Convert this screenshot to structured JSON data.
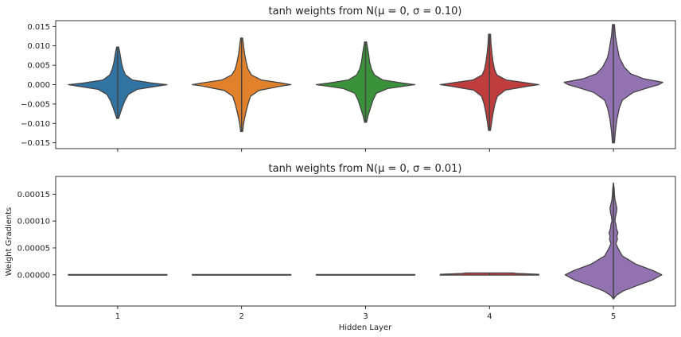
{
  "chart_data": [
    {
      "type": "violin",
      "title": "tanh weights from N(μ = 0, σ = 0.10)",
      "xlabel": "",
      "ylabel": "",
      "categories": [
        "1",
        "2",
        "3",
        "4",
        "5"
      ],
      "ylim": [
        -0.0165,
        0.0165
      ],
      "yticks": [
        -0.015,
        -0.01,
        -0.005,
        0.0,
        0.005,
        0.01,
        0.015
      ],
      "ytick_labels": [
        "−0.015",
        "−0.010",
        "−0.005",
        "0.000",
        "0.005",
        "0.010",
        "0.015"
      ],
      "show_xtick_labels": false,
      "violins": [
        {
          "category": "1",
          "color": "#3274a1",
          "min": -0.0087,
          "max": 0.0097,
          "density": [
            [
              -0.0087,
              0.02
            ],
            [
              -0.0075,
              0.05
            ],
            [
              -0.006,
              0.09
            ],
            [
              -0.004,
              0.15
            ],
            [
              -0.0025,
              0.22
            ],
            [
              -0.0012,
              0.4
            ],
            [
              -0.0004,
              0.8
            ],
            [
              0.0,
              1.0
            ],
            [
              0.0004,
              0.7
            ],
            [
              0.0012,
              0.3
            ],
            [
              0.0025,
              0.16
            ],
            [
              0.004,
              0.11
            ],
            [
              0.0055,
              0.08
            ],
            [
              0.007,
              0.06
            ],
            [
              0.0085,
              0.04
            ],
            [
              0.0097,
              0.02
            ]
          ]
        },
        {
          "category": "2",
          "color": "#e1812c",
          "min": -0.0121,
          "max": 0.012,
          "density": [
            [
              -0.0121,
              0.02
            ],
            [
              -0.01,
              0.04
            ],
            [
              -0.0075,
              0.08
            ],
            [
              -0.005,
              0.13
            ],
            [
              -0.003,
              0.18
            ],
            [
              -0.0015,
              0.35
            ],
            [
              -0.0004,
              0.78
            ],
            [
              0.0,
              1.0
            ],
            [
              0.0004,
              0.82
            ],
            [
              0.0012,
              0.4
            ],
            [
              0.0025,
              0.2
            ],
            [
              0.004,
              0.13
            ],
            [
              0.006,
              0.09
            ],
            [
              0.008,
              0.06
            ],
            [
              0.01,
              0.04
            ],
            [
              0.012,
              0.02
            ]
          ]
        },
        {
          "category": "3",
          "color": "#3a923a",
          "min": -0.0097,
          "max": 0.011,
          "density": [
            [
              -0.0097,
              0.02
            ],
            [
              -0.008,
              0.05
            ],
            [
              -0.006,
              0.1
            ],
            [
              -0.004,
              0.15
            ],
            [
              -0.0022,
              0.22
            ],
            [
              -0.001,
              0.45
            ],
            [
              -0.0003,
              0.82
            ],
            [
              0.0,
              1.0
            ],
            [
              0.0004,
              0.75
            ],
            [
              0.0012,
              0.35
            ],
            [
              0.0025,
              0.18
            ],
            [
              0.004,
              0.12
            ],
            [
              0.006,
              0.08
            ],
            [
              0.008,
              0.06
            ],
            [
              0.0095,
              0.04
            ],
            [
              0.011,
              0.02
            ]
          ]
        },
        {
          "category": "4",
          "color": "#c03d3e",
          "min": -0.0118,
          "max": 0.013,
          "density": [
            [
              -0.0118,
              0.02
            ],
            [
              -0.01,
              0.04
            ],
            [
              -0.0075,
              0.07
            ],
            [
              -0.005,
              0.11
            ],
            [
              -0.003,
              0.16
            ],
            [
              -0.0014,
              0.32
            ],
            [
              -0.0004,
              0.78
            ],
            [
              0.0,
              1.0
            ],
            [
              0.0004,
              0.78
            ],
            [
              0.0012,
              0.34
            ],
            [
              0.0025,
              0.15
            ],
            [
              0.004,
              0.1
            ],
            [
              0.006,
              0.07
            ],
            [
              0.008,
              0.05
            ],
            [
              0.0105,
              0.03
            ],
            [
              0.013,
              0.02
            ]
          ]
        },
        {
          "category": "5",
          "color": "#9372b2",
          "min": -0.015,
          "max": 0.0155,
          "density": [
            [
              -0.015,
              0.02
            ],
            [
              -0.012,
              0.04
            ],
            [
              -0.009,
              0.07
            ],
            [
              -0.006,
              0.12
            ],
            [
              -0.004,
              0.18
            ],
            [
              -0.002,
              0.4
            ],
            [
              -0.0008,
              0.7
            ],
            [
              0.0,
              0.92
            ],
            [
              0.0006,
              1.0
            ],
            [
              0.0015,
              0.62
            ],
            [
              0.0028,
              0.35
            ],
            [
              0.0045,
              0.22
            ],
            [
              0.007,
              0.12
            ],
            [
              0.0095,
              0.08
            ],
            [
              0.0125,
              0.04
            ],
            [
              0.0155,
              0.02
            ]
          ]
        }
      ]
    },
    {
      "type": "violin",
      "title": "tanh weights from N(μ = 0, σ = 0.01)",
      "xlabel": "Hidden Layer",
      "ylabel": "Weight Gradients",
      "categories": [
        "1",
        "2",
        "3",
        "4",
        "5"
      ],
      "ylim": [
        -5.8e-05,
        0.000183
      ],
      "yticks": [
        0.0,
        5e-05,
        0.0001,
        0.00015
      ],
      "ytick_labels": [
        "0.00000",
        "0.00005",
        "0.00010",
        "0.00015"
      ],
      "show_xtick_labels": true,
      "violins": [
        {
          "category": "1",
          "color": "#3274a1",
          "min": 0.0,
          "max": 0.0,
          "density": [
            [
              -5e-07,
              1.0
            ],
            [
              5e-07,
              1.0
            ]
          ]
        },
        {
          "category": "2",
          "color": "#e1812c",
          "min": 0.0,
          "max": 0.0,
          "density": [
            [
              -5e-07,
              1.0
            ],
            [
              5e-07,
              1.0
            ]
          ]
        },
        {
          "category": "3",
          "color": "#3a923a",
          "min": 0.0,
          "max": 0.0,
          "density": [
            [
              -5e-07,
              1.0
            ],
            [
              5e-07,
              1.0
            ]
          ]
        },
        {
          "category": "4",
          "color": "#c03d3e",
          "min": -5e-07,
          "max": 3.5e-06,
          "density": [
            [
              -5e-07,
              1.0
            ],
            [
              1e-06,
              1.0
            ],
            [
              2.5e-06,
              0.55
            ],
            [
              3.5e-06,
              0.48
            ]
          ]
        },
        {
          "category": "5",
          "color": "#9372b2",
          "min": -4.5e-05,
          "max": 0.000171,
          "density": [
            [
              -4.5e-05,
              0.0
            ],
            [
              -3.8e-05,
              0.06
            ],
            [
              -3e-05,
              0.2
            ],
            [
              -2e-05,
              0.48
            ],
            [
              -1e-05,
              0.78
            ],
            [
              0.0,
              0.98
            ],
            [
              8e-06,
              0.8
            ],
            [
              2e-05,
              0.45
            ],
            [
              3.5e-05,
              0.18
            ],
            [
              4.8e-05,
              0.1
            ],
            [
              5.8e-05,
              0.05
            ],
            [
              6.6e-05,
              0.08
            ],
            [
              7.2e-05,
              0.07
            ],
            [
              7.8e-05,
              0.09
            ],
            [
              8.6e-05,
              0.06
            ],
            [
              9.4e-05,
              0.05
            ],
            [
              0.0001,
              0.03
            ],
            [
              0.000108,
              0.04
            ],
            [
              0.000116,
              0.06
            ],
            [
              0.000124,
              0.07
            ],
            [
              0.000132,
              0.05
            ],
            [
              0.00014,
              0.03
            ],
            [
              0.00015,
              0.02
            ],
            [
              0.00016,
              0.015
            ],
            [
              0.000171,
              0.0
            ]
          ]
        }
      ]
    }
  ]
}
